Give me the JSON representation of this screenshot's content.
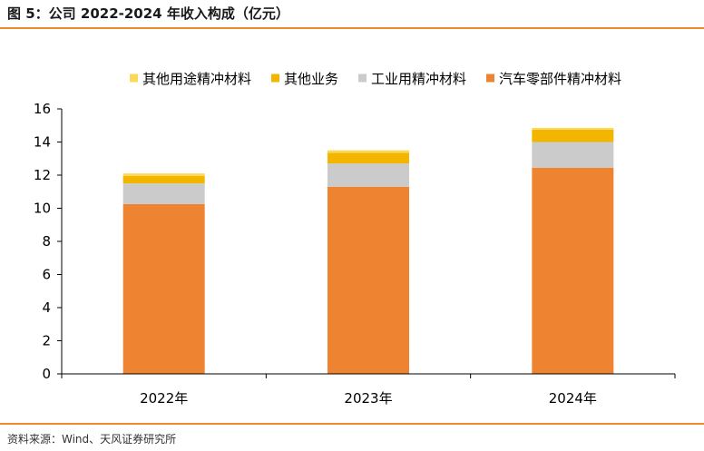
{
  "title": "图 5：公司 2022-2024 年收入构成（亿元）",
  "source": "资料来源：Wind、天风证券研究所",
  "chart_data": {
    "type": "bar",
    "stacked": true,
    "title": "",
    "xlabel": "",
    "ylabel": "",
    "categories": [
      "2022年",
      "2023年",
      "2024年"
    ],
    "ylim": [
      0,
      16
    ],
    "yticks": [
      0,
      2,
      4,
      6,
      8,
      10,
      12,
      14,
      16
    ],
    "grid": false,
    "legend_position": "top",
    "series": [
      {
        "name": "汽车零部件精冲材料",
        "color": "#ee8431",
        "values": [
          10.25,
          11.3,
          12.45
        ]
      },
      {
        "name": "工业用精冲材料",
        "color": "#cbcbcb",
        "values": [
          1.25,
          1.4,
          1.55
        ]
      },
      {
        "name": "其他业务",
        "color": "#f2b600",
        "values": [
          0.45,
          0.65,
          0.75
        ]
      },
      {
        "name": "其他用途精冲材料",
        "color": "#fcd859",
        "values": [
          0.15,
          0.15,
          0.1
        ]
      }
    ],
    "legend_order": [
      3,
      2,
      1,
      0
    ]
  }
}
